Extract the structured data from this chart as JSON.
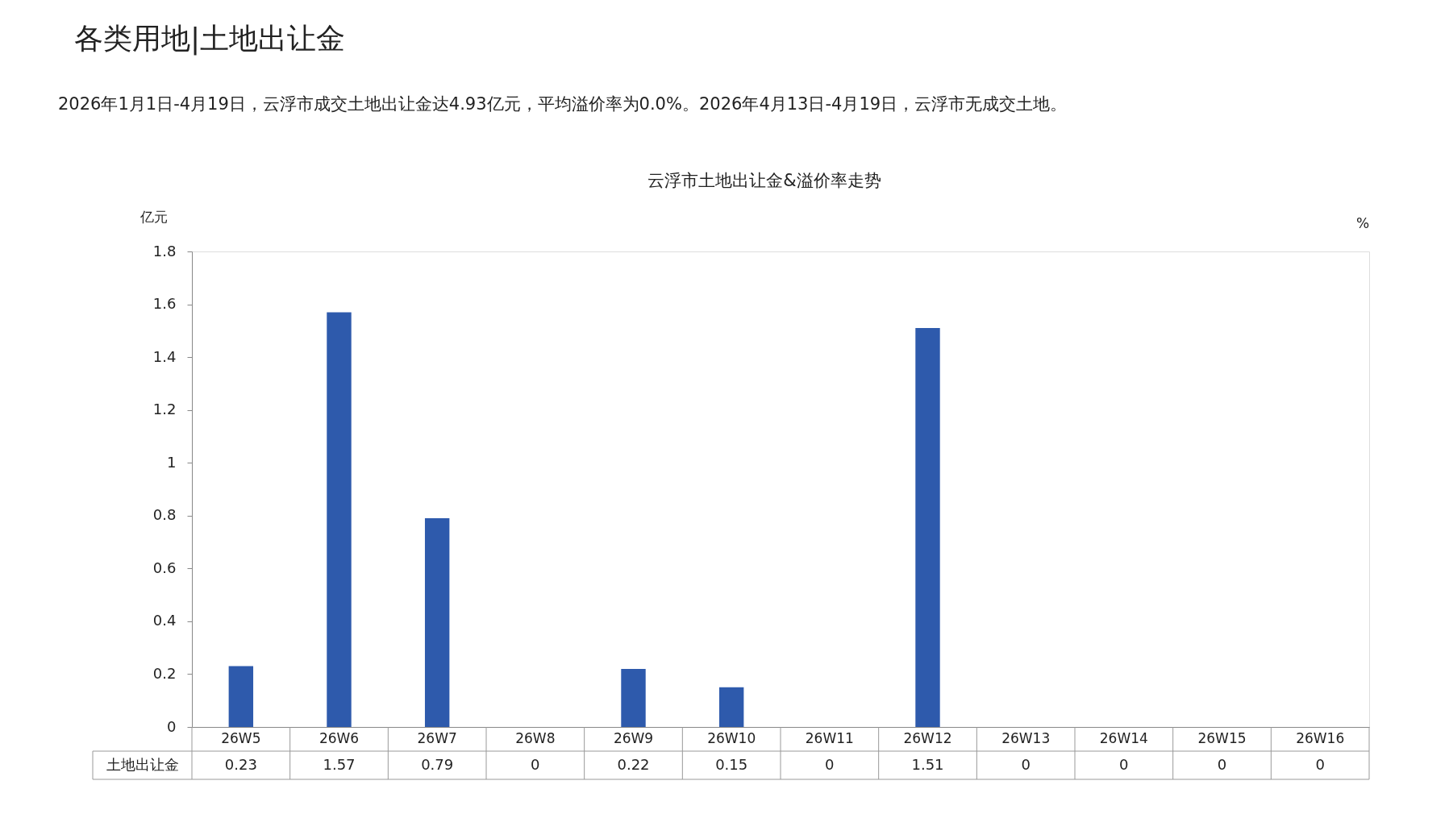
{
  "chart_data": {
    "type": "bar",
    "title": "云浮市土地出让金&溢价率走势",
    "annotations": [
      "各类用地|土地出让金",
      "2026年1月1日-4月19日，云浮市成交土地出让金达4.93亿元，平均溢价率为0.0%。2026年4月13日-4月19日，云浮市无成交土地。"
    ],
    "ylabel": "亿元",
    "y2label": "%",
    "categories": [
      "26W5",
      "26W6",
      "26W7",
      "26W8",
      "26W9",
      "26W10",
      "26W11",
      "26W12",
      "26W13",
      "26W14",
      "26W15",
      "26W16"
    ],
    "series": [
      {
        "name": "土地出让金",
        "color": "#2e5aac",
        "values": [
          0.23,
          1.57,
          0.79,
          0,
          0.22,
          0.15,
          0,
          1.51,
          0,
          0,
          0,
          0
        ]
      }
    ],
    "ylim": [
      0,
      1.8
    ],
    "yticks": [
      0,
      0.2,
      0.4,
      0.6,
      0.8,
      1,
      1.2,
      1.4,
      1.6,
      1.8
    ],
    "data_labels": true
  }
}
